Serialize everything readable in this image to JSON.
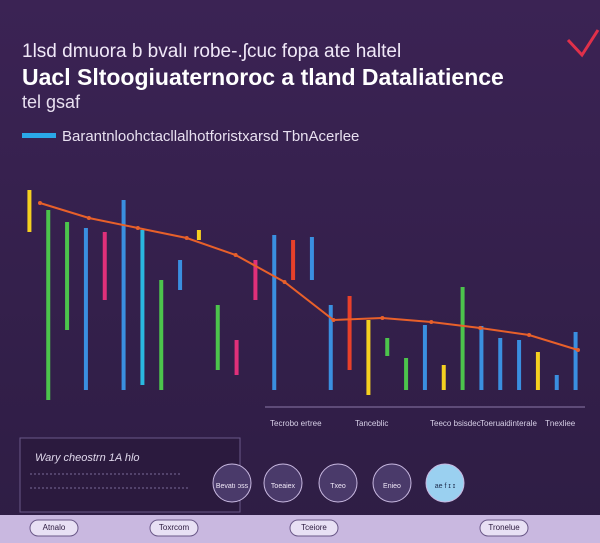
{
  "chart_data": {
    "type": "range_bar",
    "title_lines": [
      "1lsd dmuora b bvalı robe-.ʃcuc fopa ate haltel",
      "Uacl Sltoogiuaternoroc a tland Dataliatience",
      "tel gsaf"
    ],
    "legend": {
      "label": "Barantnloohctacllalhotforistxarsd TbnAcerlee",
      "color": "#2aa8e8"
    },
    "ylim": [
      0,
      220
    ],
    "high": [
      210,
      190,
      178,
      172,
      168,
      200,
      170,
      120,
      140,
      170,
      95,
      60,
      140,
      165,
      160,
      163,
      95,
      104,
      80,
      62,
      42,
      75,
      35,
      113,
      74,
      62,
      60,
      48,
      25,
      68
    ],
    "low": [
      168,
      0,
      70,
      10,
      100,
      10,
      15,
      10,
      110,
      160,
      30,
      25,
      100,
      10,
      120,
      120,
      10,
      30,
      5,
      44,
      10,
      10,
      10,
      10,
      10,
      10,
      10,
      10,
      10,
      10
    ],
    "colors": [
      "#f5d020",
      "#4cc44c",
      "#4cc44c",
      "#3a8fe0",
      "#e0307a",
      "#3a8fe0",
      "#2ab8e0",
      "#4cc44c",
      "#3a8fe0",
      "#f5d020",
      "#4cc44c",
      "#e0307a",
      "#e0307a",
      "#3a8fe0",
      "#e8402a",
      "#3a8fe0",
      "#3a8fe0",
      "#e8402a",
      "#f5d020",
      "#4cc44c",
      "#4cc44c",
      "#3a8fe0",
      "#f5d020",
      "#4cc44c",
      "#3a8fe0",
      "#3a8fe0",
      "#3a8fe0",
      "#f5d020",
      "#3a8fe0",
      "#3a8fe0"
    ],
    "line": {
      "color": "#e8602a",
      "values": [
        197,
        182,
        172,
        162,
        145,
        118,
        80,
        82,
        78,
        72,
        65,
        50
      ]
    },
    "annotations": [
      "Tecrobo ertree",
      "Tanceblic",
      "Teeco bsisdec",
      "Toeruaidinterale",
      "Tnexliee"
    ]
  },
  "footer": {
    "box_title": "Wary cheostrn 1A hlo",
    "icons": [
      "Bevatı ɔss",
      "Toeaiex",
      "Txeo",
      "Enieo",
      "ae f ɪ ɪ"
    ],
    "pills": [
      "Atnalo",
      "Toxrcom",
      "Tceiore",
      "Tronelue"
    ]
  }
}
